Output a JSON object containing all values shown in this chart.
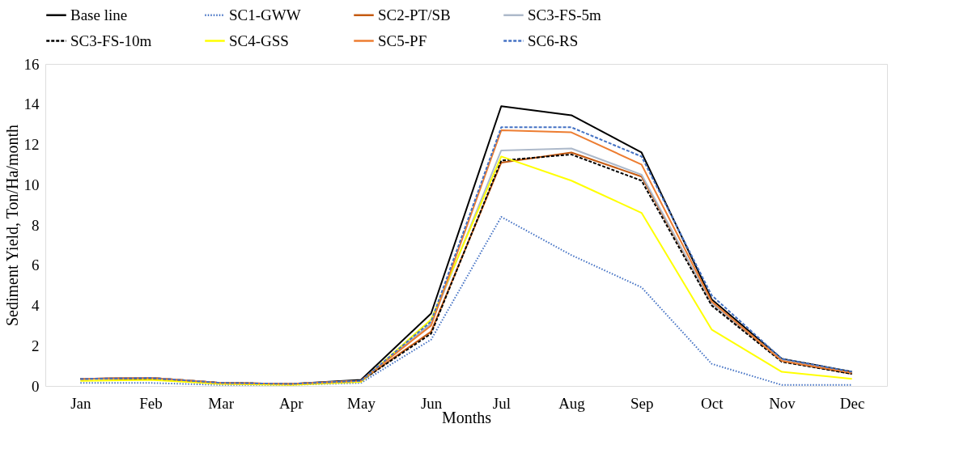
{
  "chart_data": {
    "type": "line",
    "xlabel": "Months",
    "ylabel": "Sediment Yield, Ton/Ha/month",
    "categories": [
      "Jan",
      "Feb",
      "Mar",
      "Apr",
      "May",
      "Jun",
      "Jul",
      "Aug",
      "Sep",
      "Oct",
      "Nov",
      "Dec"
    ],
    "series": [
      {
        "name": "Base line",
        "color": "#000000",
        "line_style": "solid",
        "values": [
          0.35,
          0.4,
          0.15,
          0.1,
          0.3,
          3.6,
          13.9,
          13.45,
          11.6,
          4.3,
          1.35,
          0.7
        ]
      },
      {
        "name": "SC1-GWW",
        "color": "#4472c4",
        "line_style": "dotted",
        "values": [
          0.15,
          0.15,
          0.05,
          0.05,
          0.15,
          2.3,
          8.4,
          6.5,
          4.9,
          1.1,
          0.05,
          0.05
        ]
      },
      {
        "name": "SC2-PT/SB",
        "color": "#c55a11",
        "line_style": "solid",
        "values": [
          0.35,
          0.4,
          0.15,
          0.1,
          0.25,
          2.7,
          11.1,
          11.6,
          10.4,
          4.1,
          1.25,
          0.6
        ]
      },
      {
        "name": "SC3-FS-5m",
        "color": "#adb9ca",
        "line_style": "solid",
        "values": [
          0.35,
          0.4,
          0.15,
          0.1,
          0.25,
          3.1,
          11.7,
          11.8,
          10.5,
          4.1,
          1.3,
          0.65
        ]
      },
      {
        "name": "SC3-FS-10m",
        "color": "#000000",
        "line_style": "dashed",
        "values": [
          0.35,
          0.35,
          0.15,
          0.1,
          0.25,
          2.6,
          11.2,
          11.5,
          10.2,
          4.0,
          1.2,
          0.6
        ]
      },
      {
        "name": "SC4-GSS",
        "color": "#ffff00",
        "line_style": "solid",
        "values": [
          0.25,
          0.3,
          0.1,
          0.05,
          0.2,
          3.3,
          11.4,
          10.2,
          8.6,
          2.8,
          0.7,
          0.35
        ]
      },
      {
        "name": "SC5-PF",
        "color": "#ed7d31",
        "line_style": "solid",
        "values": [
          0.35,
          0.4,
          0.15,
          0.1,
          0.25,
          3.0,
          12.7,
          12.6,
          11.0,
          4.2,
          1.25,
          0.65
        ]
      },
      {
        "name": "SC6-RS",
        "color": "#4472c4",
        "line_style": "dashed",
        "values": [
          0.35,
          0.4,
          0.15,
          0.1,
          0.25,
          3.2,
          12.85,
          12.85,
          11.4,
          4.5,
          1.35,
          0.7
        ]
      }
    ],
    "ylim": [
      0,
      16
    ],
    "yticks": [
      0,
      2,
      4,
      6,
      8,
      10,
      12,
      14,
      16
    ],
    "grid": false,
    "legend": "top",
    "marker": "none"
  }
}
